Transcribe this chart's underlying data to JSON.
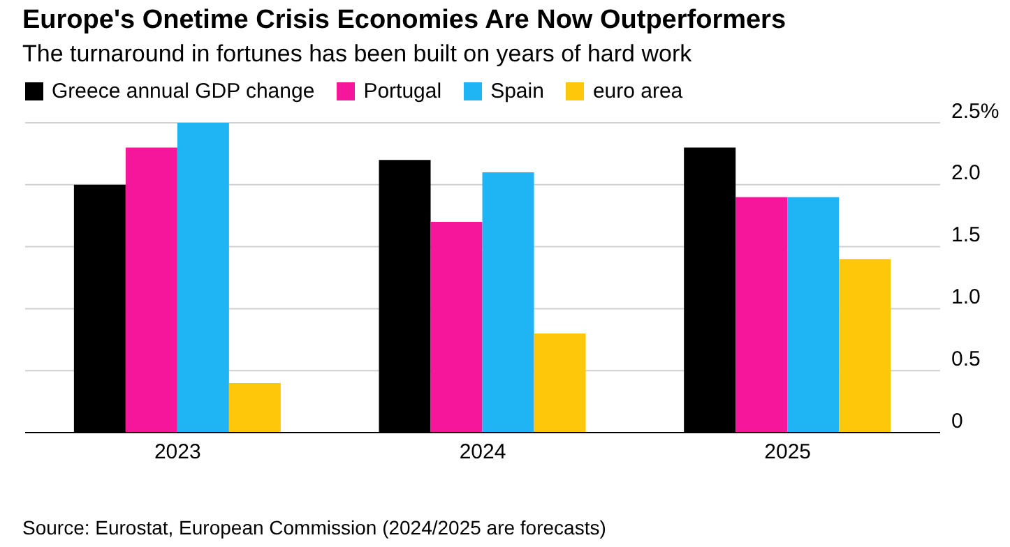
{
  "chart_data": {
    "type": "bar",
    "title": "Europe's Onetime Crisis Economies Are Now Outperformers",
    "subtitle": "The turnaround in fortunes has been built on years of hard work",
    "categories": [
      "2023",
      "2024",
      "2025"
    ],
    "series": [
      {
        "name": "Greece annual GDP change",
        "color": "#000000",
        "values": [
          2.0,
          2.2,
          2.3
        ]
      },
      {
        "name": "Portugal",
        "color": "#f5169b",
        "values": [
          2.3,
          1.7,
          1.9
        ]
      },
      {
        "name": "Spain",
        "color": "#1fb5f5",
        "values": [
          2.5,
          2.1,
          1.9
        ]
      },
      {
        "name": "euro area",
        "color": "#ffc70a",
        "values": [
          0.4,
          0.8,
          1.4
        ]
      }
    ],
    "ylim": [
      0,
      2.5
    ],
    "yticks": [
      0,
      {
        "value": 0.5,
        "label": "0.5"
      },
      {
        "value": 1,
        "label": "1.0"
      },
      {
        "value": 1.5,
        "label": "1.5"
      },
      {
        "value": 2,
        "label": "2.0"
      },
      {
        "value": 2.5,
        "label": "2.5%"
      }
    ],
    "grid": "y",
    "legend": "top left",
    "annotations": [
      "Source: Eurostat, European Commission (2024/2025 are forecasts)"
    ]
  }
}
